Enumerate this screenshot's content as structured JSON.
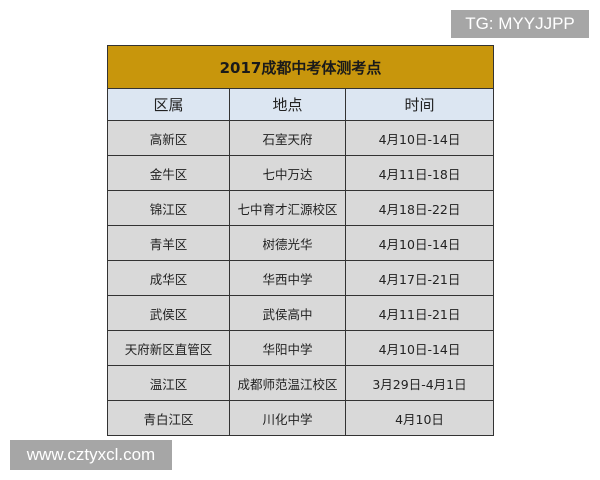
{
  "table": {
    "title": "2017成都中考体测考点",
    "headers": [
      "区属",
      "地点",
      "时间"
    ],
    "rows": [
      [
        "高新区",
        "石室天府",
        "4月10日-14日"
      ],
      [
        "金牛区",
        "七中万达",
        "4月11日-18日"
      ],
      [
        "锦江区",
        "七中育才汇源校区",
        "4月18日-22日"
      ],
      [
        "青羊区",
        "树德光华",
        "4月10日-14日"
      ],
      [
        "成华区",
        "华西中学",
        "4月17日-21日"
      ],
      [
        "武侯区",
        "武侯高中",
        "4月11日-21日"
      ],
      [
        "天府新区直管区",
        "华阳中学",
        "4月10日-14日"
      ],
      [
        "温江区",
        "成都师范温江校区",
        "3月29日-4月1日"
      ],
      [
        "青白江区",
        "川化中学",
        "4月10日"
      ]
    ],
    "colors": {
      "title_bg": "#c8960c",
      "header_bg": "#dce6f2",
      "row_bg": "#d9d9d9"
    }
  },
  "watermarks": {
    "top_right": "TG: MYYJJPP",
    "bottom_left": "www.cztyxcl.com"
  }
}
